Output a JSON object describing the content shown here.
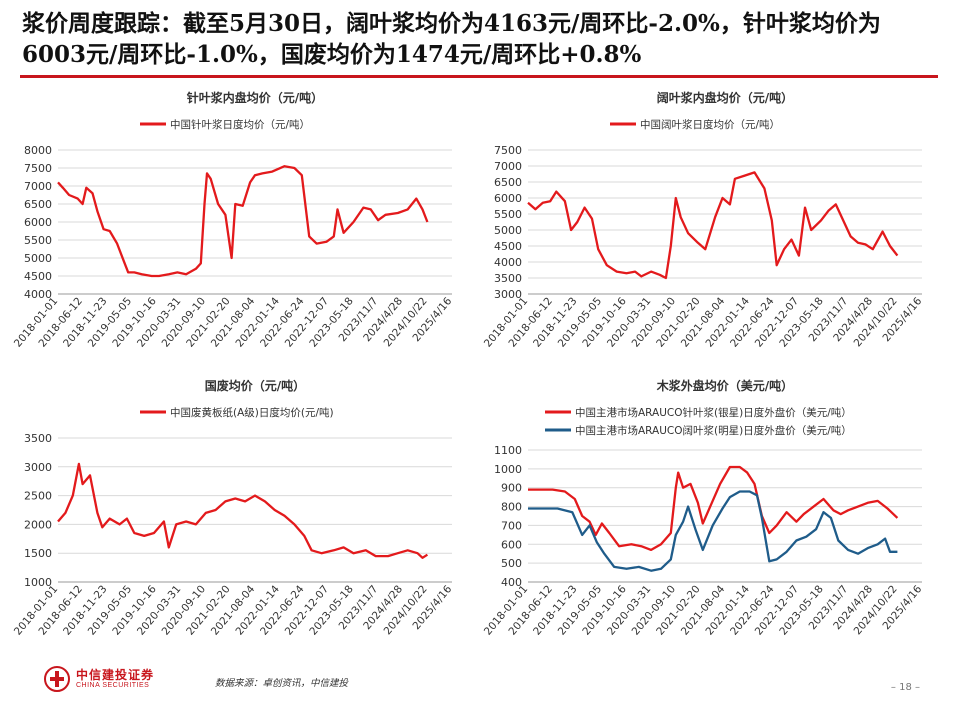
{
  "headline": "浆价周度跟踪：截至5月30日，阔叶浆均价为4163元/周环比-2.0%，针叶浆均价为6003元/周环比-1.0%，国废均价为1474元/周环比+0.8%",
  "colors": {
    "red": "#e31a1c",
    "blue": "#1f5c8a",
    "accent": "#c8161d",
    "grid": "#d9d9d9"
  },
  "footer": {
    "logo_cn": "中信建投证券",
    "logo_en": "CHINA SECURITIES",
    "source": "数据来源：卓创资讯，中信建投",
    "page": "18"
  },
  "chart_data": [
    {
      "type": "line",
      "title": "针叶浆内盘均价（元/吨）",
      "x": [
        "2018-01-01",
        "2018-06-12",
        "2018-11-23",
        "2019-05-05",
        "2019-10-16",
        "2020-03-31",
        "2020-09-10",
        "2021-02-20",
        "2021-08-04",
        "2022-01-14",
        "2022-06-24",
        "2022-12-07",
        "2023-05-18",
        "2023/11/7",
        "2024/4/28",
        "2024/10/22",
        "2025/4/16"
      ],
      "ylim": [
        4000,
        8000
      ],
      "yticks": [
        4000,
        4500,
        5000,
        5500,
        6000,
        6500,
        7000,
        7500,
        8000
      ],
      "series": [
        {
          "name": "中国针叶浆日度均价（元/吨）",
          "color": "#e31a1c",
          "points": [
            [
              0,
              7100
            ],
            [
              0.2,
              6950
            ],
            [
              0.45,
              6750
            ],
            [
              0.8,
              6650
            ],
            [
              1.0,
              6500
            ],
            [
              1.15,
              6950
            ],
            [
              1.4,
              6800
            ],
            [
              1.6,
              6300
            ],
            [
              1.85,
              5800
            ],
            [
              2.1,
              5750
            ],
            [
              2.4,
              5400
            ],
            [
              2.65,
              4950
            ],
            [
              2.85,
              4600
            ],
            [
              3.1,
              4600
            ],
            [
              3.4,
              4550
            ],
            [
              3.8,
              4500
            ],
            [
              4.1,
              4500
            ],
            [
              4.5,
              4550
            ],
            [
              4.85,
              4600
            ],
            [
              5.2,
              4550
            ],
            [
              5.6,
              4700
            ],
            [
              5.8,
              4850
            ],
            [
              5.95,
              6500
            ],
            [
              6.05,
              7350
            ],
            [
              6.2,
              7200
            ],
            [
              6.5,
              6500
            ],
            [
              6.8,
              6200
            ],
            [
              7.05,
              5000
            ],
            [
              7.2,
              6500
            ],
            [
              7.5,
              6450
            ],
            [
              7.8,
              7100
            ],
            [
              8.0,
              7300
            ],
            [
              8.3,
              7350
            ],
            [
              8.7,
              7400
            ],
            [
              9.2,
              7550
            ],
            [
              9.6,
              7500
            ],
            [
              9.9,
              7300
            ],
            [
              10.2,
              5600
            ],
            [
              10.5,
              5400
            ],
            [
              10.9,
              5450
            ],
            [
              11.2,
              5600
            ],
            [
              11.35,
              6350
            ],
            [
              11.6,
              5700
            ],
            [
              12.0,
              6000
            ],
            [
              12.4,
              6400
            ],
            [
              12.7,
              6350
            ],
            [
              13.0,
              6050
            ],
            [
              13.3,
              6200
            ],
            [
              13.8,
              6250
            ],
            [
              14.2,
              6350
            ],
            [
              14.55,
              6650
            ],
            [
              14.8,
              6350
            ],
            [
              15.0,
              6000
            ]
          ]
        }
      ]
    },
    {
      "type": "line",
      "title": "阔叶浆内盘均价（元/吨）",
      "x": [
        "2018-01-01",
        "2018-06-12",
        "2018-11-23",
        "2019-05-05",
        "2019-10-16",
        "2020-03-31",
        "2020-09-10",
        "2021-02-20",
        "2021-08-04",
        "2022-01-14",
        "2022-06-24",
        "2022-12-07",
        "2023-05-18",
        "2023/11/7",
        "2024/4/28",
        "2024/10/22",
        "2025/4/16"
      ],
      "ylim": [
        3000,
        7500
      ],
      "yticks": [
        3000,
        3500,
        4000,
        4500,
        5000,
        5500,
        6000,
        6500,
        7000,
        7500
      ],
      "series": [
        {
          "name": "中国阔叶浆日度均价（元/吨）",
          "color": "#e31a1c",
          "points": [
            [
              0,
              5850
            ],
            [
              0.3,
              5650
            ],
            [
              0.6,
              5850
            ],
            [
              0.9,
              5900
            ],
            [
              1.15,
              6200
            ],
            [
              1.5,
              5900
            ],
            [
              1.75,
              5000
            ],
            [
              2.0,
              5250
            ],
            [
              2.3,
              5700
            ],
            [
              2.6,
              5350
            ],
            [
              2.85,
              4400
            ],
            [
              3.2,
              3900
            ],
            [
              3.6,
              3700
            ],
            [
              4.0,
              3650
            ],
            [
              4.35,
              3700
            ],
            [
              4.6,
              3550
            ],
            [
              5.0,
              3700
            ],
            [
              5.35,
              3600
            ],
            [
              5.6,
              3500
            ],
            [
              5.8,
              4500
            ],
            [
              6.0,
              6000
            ],
            [
              6.2,
              5400
            ],
            [
              6.5,
              4900
            ],
            [
              6.9,
              4600
            ],
            [
              7.2,
              4400
            ],
            [
              7.6,
              5400
            ],
            [
              7.9,
              6000
            ],
            [
              8.2,
              5800
            ],
            [
              8.4,
              6600
            ],
            [
              8.8,
              6700
            ],
            [
              9.2,
              6800
            ],
            [
              9.6,
              6300
            ],
            [
              9.9,
              5300
            ],
            [
              10.1,
              3900
            ],
            [
              10.4,
              4400
            ],
            [
              10.7,
              4700
            ],
            [
              11.0,
              4200
            ],
            [
              11.25,
              5700
            ],
            [
              11.5,
              5000
            ],
            [
              11.9,
              5300
            ],
            [
              12.2,
              5600
            ],
            [
              12.5,
              5800
            ],
            [
              12.8,
              5300
            ],
            [
              13.1,
              4800
            ],
            [
              13.4,
              4600
            ],
            [
              13.7,
              4550
            ],
            [
              14.0,
              4400
            ],
            [
              14.4,
              4950
            ],
            [
              14.7,
              4500
            ],
            [
              15.0,
              4200
            ]
          ]
        }
      ]
    },
    {
      "type": "line",
      "title": "国废均价（元/吨）",
      "x": [
        "2018-01-01",
        "2018-06-12",
        "2018-11-23",
        "2019-05-05",
        "2019-10-16",
        "2020-03-31",
        "2020-09-10",
        "2021-02-20",
        "2021-08-04",
        "2022-01-14",
        "2022-06-24",
        "2022-12-07",
        "2023-05-18",
        "2023/11/7",
        "2024/4/28",
        "2024/10/22",
        "2025/4/16"
      ],
      "ylim": [
        1000,
        3500
      ],
      "yticks": [
        1000,
        1500,
        2000,
        2500,
        3000,
        3500
      ],
      "series": [
        {
          "name": "中国废黄板纸(A级)日度均价(元/吨)",
          "color": "#e31a1c",
          "points": [
            [
              0,
              2050
            ],
            [
              0.3,
              2200
            ],
            [
              0.6,
              2500
            ],
            [
              0.85,
              3050
            ],
            [
              1.0,
              2700
            ],
            [
              1.3,
              2850
            ],
            [
              1.6,
              2200
            ],
            [
              1.8,
              1950
            ],
            [
              2.1,
              2100
            ],
            [
              2.5,
              2000
            ],
            [
              2.8,
              2100
            ],
            [
              3.1,
              1850
            ],
            [
              3.5,
              1800
            ],
            [
              3.9,
              1850
            ],
            [
              4.3,
              2050
            ],
            [
              4.5,
              1600
            ],
            [
              4.8,
              2000
            ],
            [
              5.2,
              2050
            ],
            [
              5.6,
              2000
            ],
            [
              6.0,
              2200
            ],
            [
              6.4,
              2250
            ],
            [
              6.8,
              2400
            ],
            [
              7.2,
              2450
            ],
            [
              7.6,
              2400
            ],
            [
              8.0,
              2500
            ],
            [
              8.4,
              2400
            ],
            [
              8.8,
              2250
            ],
            [
              9.2,
              2150
            ],
            [
              9.6,
              2000
            ],
            [
              10.0,
              1800
            ],
            [
              10.3,
              1550
            ],
            [
              10.7,
              1500
            ],
            [
              11.2,
              1550
            ],
            [
              11.6,
              1600
            ],
            [
              12.0,
              1500
            ],
            [
              12.5,
              1550
            ],
            [
              12.9,
              1450
            ],
            [
              13.4,
              1450
            ],
            [
              13.8,
              1500
            ],
            [
              14.2,
              1550
            ],
            [
              14.6,
              1500
            ],
            [
              14.8,
              1420
            ],
            [
              15.0,
              1474
            ]
          ]
        }
      ]
    },
    {
      "type": "line",
      "title": "木浆外盘均价（美元/吨）",
      "x": [
        "2018-01-01",
        "2018-06-12",
        "2018-11-23",
        "2019-05-05",
        "2019-10-16",
        "2020-03-31",
        "2020-09-10",
        "2021-02-20",
        "2021-08-04",
        "2022-01-14",
        "2022-06-24",
        "2022-12-07",
        "2023-05-18",
        "2023/11/7",
        "2024/4/28",
        "2024/10/22",
        "2025/4/16"
      ],
      "ylim": [
        400,
        1100
      ],
      "yticks": [
        400,
        500,
        600,
        700,
        800,
        900,
        1000,
        1100
      ],
      "series": [
        {
          "name": "中国主港市场ARAUCO针叶浆(银星)日度外盘价（美元/吨）",
          "color": "#e31a1c",
          "points": [
            [
              0,
              890
            ],
            [
              1.0,
              890
            ],
            [
              1.5,
              880
            ],
            [
              1.9,
              840
            ],
            [
              2.2,
              750
            ],
            [
              2.5,
              720
            ],
            [
              2.75,
              650
            ],
            [
              3.0,
              710
            ],
            [
              3.3,
              660
            ],
            [
              3.7,
              590
            ],
            [
              4.2,
              600
            ],
            [
              4.6,
              590
            ],
            [
              5.0,
              570
            ],
            [
              5.4,
              600
            ],
            [
              5.8,
              660
            ],
            [
              6.0,
              900
            ],
            [
              6.1,
              980
            ],
            [
              6.3,
              900
            ],
            [
              6.6,
              920
            ],
            [
              6.9,
              820
            ],
            [
              7.1,
              710
            ],
            [
              7.4,
              800
            ],
            [
              7.8,
              920
            ],
            [
              8.2,
              1010
            ],
            [
              8.6,
              1010
            ],
            [
              8.9,
              980
            ],
            [
              9.2,
              920
            ],
            [
              9.5,
              750
            ],
            [
              9.8,
              660
            ],
            [
              10.1,
              700
            ],
            [
              10.5,
              770
            ],
            [
              10.9,
              720
            ],
            [
              11.2,
              760
            ],
            [
              11.6,
              800
            ],
            [
              12.0,
              840
            ],
            [
              12.4,
              780
            ],
            [
              12.7,
              760
            ],
            [
              13.0,
              780
            ],
            [
              13.4,
              800
            ],
            [
              13.8,
              820
            ],
            [
              14.2,
              830
            ],
            [
              14.6,
              790
            ],
            [
              15.0,
              740
            ]
          ]
        },
        {
          "name": "中国主港市场ARAUCO阔叶浆(明星)日度外盘价（美元/吨）",
          "color": "#1f5c8a",
          "points": [
            [
              0,
              790
            ],
            [
              1.2,
              790
            ],
            [
              1.8,
              770
            ],
            [
              2.2,
              650
            ],
            [
              2.5,
              700
            ],
            [
              2.8,
              610
            ],
            [
              3.1,
              550
            ],
            [
              3.5,
              480
            ],
            [
              4.0,
              470
            ],
            [
              4.5,
              480
            ],
            [
              5.0,
              460
            ],
            [
              5.4,
              470
            ],
            [
              5.8,
              520
            ],
            [
              6.0,
              650
            ],
            [
              6.3,
              720
            ],
            [
              6.5,
              800
            ],
            [
              6.8,
              680
            ],
            [
              7.1,
              570
            ],
            [
              7.5,
              700
            ],
            [
              7.9,
              790
            ],
            [
              8.2,
              850
            ],
            [
              8.6,
              880
            ],
            [
              9.0,
              880
            ],
            [
              9.3,
              860
            ],
            [
              9.5,
              740
            ],
            [
              9.8,
              510
            ],
            [
              10.1,
              520
            ],
            [
              10.5,
              560
            ],
            [
              10.9,
              620
            ],
            [
              11.3,
              640
            ],
            [
              11.7,
              680
            ],
            [
              12.0,
              770
            ],
            [
              12.3,
              740
            ],
            [
              12.6,
              620
            ],
            [
              13.0,
              570
            ],
            [
              13.4,
              550
            ],
            [
              13.8,
              580
            ],
            [
              14.2,
              600
            ],
            [
              14.5,
              630
            ],
            [
              14.7,
              560
            ],
            [
              15.0,
              560
            ]
          ]
        }
      ]
    }
  ]
}
